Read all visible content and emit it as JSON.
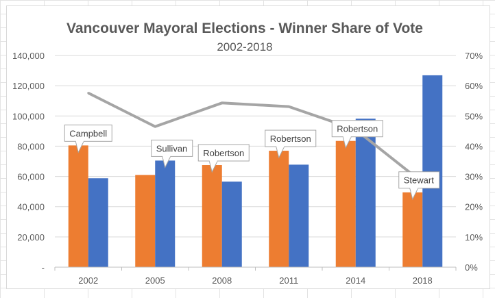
{
  "chart_data": {
    "type": "bar",
    "title": "Vancouver Mayoral Elections - Winner Share of Vote",
    "subtitle": "2002-2018",
    "categories": [
      "2002",
      "2005",
      "2008",
      "2011",
      "2014",
      "2018"
    ],
    "series": [
      {
        "kind": "bar",
        "axis": "left",
        "color": "#ED7D31",
        "values": [
          80500,
          61000,
          67500,
          77000,
          83500,
          49500
        ]
      },
      {
        "kind": "bar",
        "axis": "left",
        "color": "#4472C4",
        "values": [
          58800,
          70500,
          56600,
          67800,
          98200,
          126900
        ]
      },
      {
        "kind": "line",
        "axis": "right",
        "color": "#A5A5A5",
        "values": [
          0.576,
          0.465,
          0.543,
          0.531,
          0.455,
          0.28
        ]
      }
    ],
    "callouts": [
      "Campbell",
      "Sullivan",
      "Robertson",
      "Robertson",
      "Robertson",
      "Stewart"
    ],
    "y_left": {
      "min": 0,
      "max": 140000,
      "tick_labels": [
        "-",
        "20,000",
        "40,000",
        "60,000",
        "80,000",
        "100,000",
        "120,000",
        "140,000"
      ]
    },
    "y_right": {
      "min": 0,
      "max": 0.7,
      "tick_labels": [
        "0%",
        "10%",
        "20%",
        "30%",
        "40%",
        "50%",
        "60%",
        "70%"
      ]
    },
    "grid": true,
    "legend": "none"
  }
}
